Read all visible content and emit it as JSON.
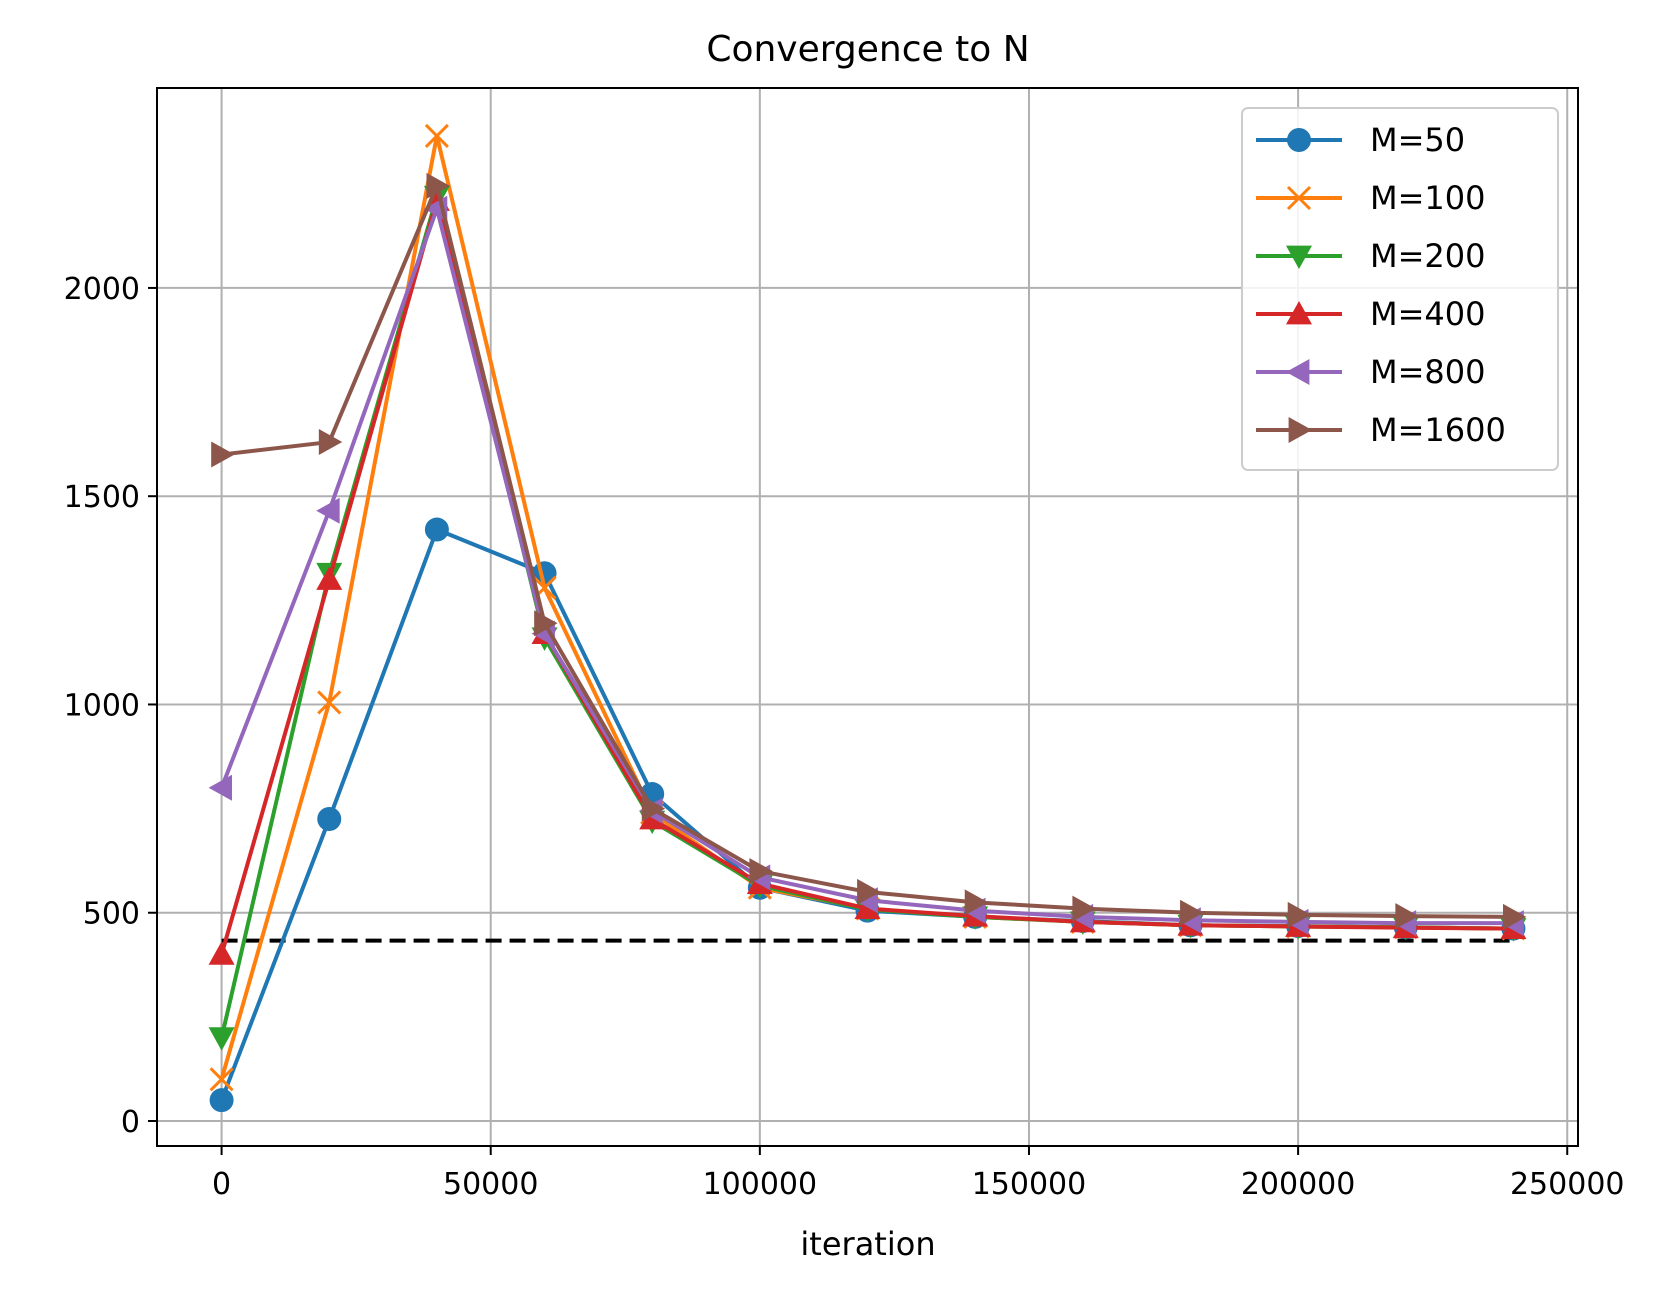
{
  "chart_data": {
    "type": "line",
    "title": "Convergence to N",
    "xlabel": "iteration",
    "ylabel": "",
    "xlim": [
      -12000,
      252000
    ],
    "ylim": [
      -60,
      2480
    ],
    "xticks": [
      0,
      50000,
      100000,
      150000,
      200000,
      250000
    ],
    "xtick_labels": [
      "0",
      "50000",
      "100000",
      "150000",
      "200000",
      "250000"
    ],
    "yticks": [
      0,
      500,
      1000,
      1500,
      2000
    ],
    "ytick_labels": [
      "0",
      "500",
      "1000",
      "1500",
      "2000"
    ],
    "grid": true,
    "legend_position": "top-right",
    "x": [
      0,
      20000,
      40000,
      60000,
      80000,
      100000,
      120000,
      140000,
      160000,
      180000,
      200000,
      220000,
      240000
    ],
    "series": [
      {
        "name": "M=50",
        "color": "#1f77b4",
        "marker": "circle",
        "values": [
          50,
          725,
          1420,
          1315,
          785,
          560,
          505,
          490,
          480,
          470,
          468,
          465,
          462
        ]
      },
      {
        "name": "M=100",
        "color": "#ff7f0e",
        "marker": "x",
        "values": [
          100,
          1005,
          2365,
          1280,
          740,
          560,
          510,
          490,
          478,
          470,
          467,
          465,
          462
        ]
      },
      {
        "name": "M=200",
        "color": "#2ca02c",
        "marker": "triangle-down",
        "values": [
          200,
          1315,
          2220,
          1160,
          720,
          565,
          508,
          490,
          478,
          470,
          467,
          465,
          462
        ]
      },
      {
        "name": "M=400",
        "color": "#d62728",
        "marker": "triangle-up",
        "values": [
          400,
          1300,
          2210,
          1170,
          725,
          570,
          510,
          492,
          478,
          470,
          467,
          464,
          462
        ]
      },
      {
        "name": "M=800",
        "color": "#9467bd",
        "marker": "triangle-left",
        "values": [
          800,
          1465,
          2190,
          1170,
          745,
          585,
          530,
          505,
          490,
          482,
          478,
          475,
          475
        ]
      },
      {
        "name": "M=1600",
        "color": "#8c564b",
        "marker": "triangle-right",
        "values": [
          1600,
          1630,
          2245,
          1195,
          750,
          600,
          550,
          525,
          510,
          500,
          495,
          492,
          490
        ]
      }
    ],
    "reference_line": {
      "y": 433,
      "x_start": 0,
      "x_end": 240000,
      "style": "dashed",
      "color": "#000000"
    }
  }
}
